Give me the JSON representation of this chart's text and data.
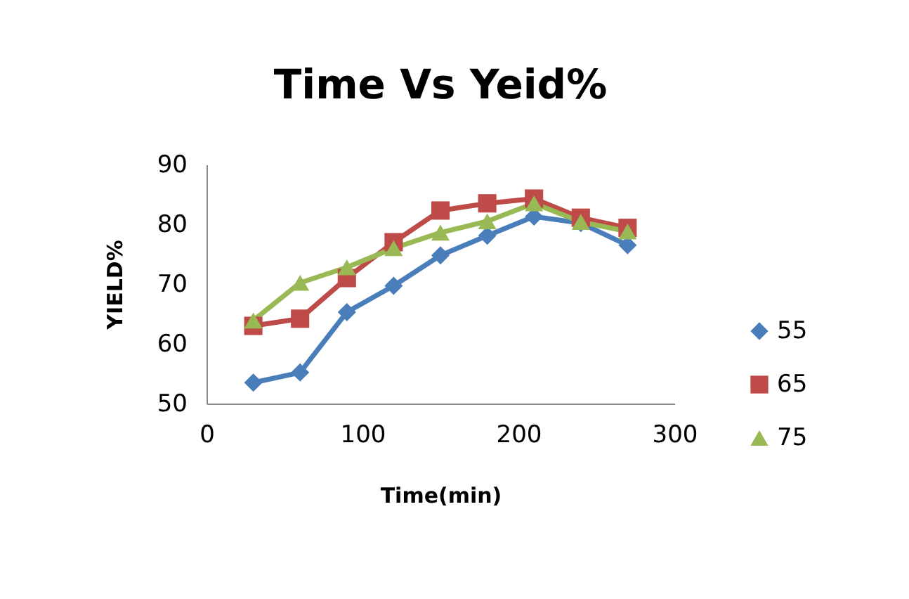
{
  "chart_data": {
    "type": "line",
    "title": "Time Vs Yeid%",
    "xlabel": "Time(min)",
    "ylabel": "YIELD%",
    "x": [
      30,
      60,
      90,
      120,
      150,
      180,
      210,
      240,
      270
    ],
    "series": [
      {
        "name": "55",
        "color": "#4a7ebb",
        "marker": "diamond",
        "values": [
          53.5,
          55.2,
          65.3,
          69.7,
          74.8,
          78.1,
          81.3,
          80.2,
          76.5
        ]
      },
      {
        "name": "65",
        "color": "#be4b48",
        "marker": "square",
        "values": [
          63,
          64.2,
          71,
          77,
          82.3,
          83.5,
          84.3,
          81.1,
          79.4
        ]
      },
      {
        "name": "75",
        "color": "#98b954",
        "marker": "triangle",
        "values": [
          63.9,
          70.2,
          72.8,
          76,
          78.6,
          80.5,
          83.5,
          80.4,
          78.8
        ]
      }
    ],
    "xlim": [
      0,
      300
    ],
    "xticks": [
      0,
      100,
      200,
      300
    ],
    "ylim": [
      50,
      90
    ],
    "yticks": [
      50,
      60,
      70,
      80,
      90
    ],
    "grid": false,
    "legend": "right",
    "line_style": "solid"
  }
}
